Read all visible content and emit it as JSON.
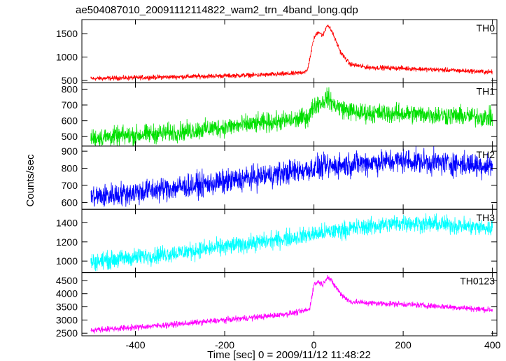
{
  "chart_data": {
    "type": "line",
    "title": "ae504087010_20091112114822_wam2_trn_4band_long.qdp",
    "xlabel": "Time [sec] 0 = 2009/11/12 11:48:22",
    "ylabel": "Counts/sec",
    "xlim": [
      -520,
      410
    ],
    "xticks": [
      -400,
      -200,
      0,
      200,
      400
    ],
    "grid": false,
    "panels": [
      {
        "name": "TH0",
        "color": "#ff0000",
        "ylim": [
          450,
          1800
        ],
        "yticks": [
          500,
          1000,
          1500
        ],
        "x": [
          -500,
          -400,
          -300,
          -200,
          -100,
          -40,
          -15,
          0,
          10,
          20,
          30,
          40,
          60,
          80,
          120,
          200,
          300,
          400
        ],
        "y": [
          540,
          560,
          580,
          600,
          625,
          650,
          700,
          1400,
          1550,
          1450,
          1700,
          1550,
          1100,
          850,
          780,
          760,
          720,
          680
        ],
        "noise": 25
      },
      {
        "name": "TH1",
        "color": "#00e000",
        "ylim": [
          440,
          840
        ],
        "yticks": [
          500,
          600,
          700,
          800
        ],
        "x": [
          -500,
          -400,
          -300,
          -200,
          -100,
          -40,
          -10,
          0,
          20,
          30,
          45,
          70,
          100,
          200,
          300,
          400
        ],
        "y": [
          490,
          510,
          530,
          560,
          590,
          605,
          630,
          700,
          720,
          750,
          700,
          670,
          650,
          645,
          635,
          620
        ],
        "noise": 30
      },
      {
        "name": "TH2",
        "color": "#0000ff",
        "ylim": [
          560,
          930
        ],
        "yticks": [
          600,
          700,
          800,
          900
        ],
        "x": [
          -500,
          -400,
          -300,
          -200,
          -100,
          0,
          100,
          200,
          300,
          400
        ],
        "y": [
          630,
          660,
          690,
          720,
          760,
          800,
          830,
          845,
          830,
          815
        ],
        "noise": 35
      },
      {
        "name": "TH3",
        "color": "#00ffff",
        "ylim": [
          880,
          1540
        ],
        "yticks": [
          1000,
          1200,
          1400
        ],
        "x": [
          -500,
          -400,
          -300,
          -200,
          -100,
          0,
          100,
          200,
          300,
          400
        ],
        "y": [
          990,
          1040,
          1090,
          1150,
          1210,
          1280,
          1350,
          1400,
          1380,
          1340
        ],
        "noise": 45
      },
      {
        "name": "TH0123",
        "color": "#ff00ff",
        "ylim": [
          2400,
          4800
        ],
        "yticks": [
          2500,
          3000,
          3500,
          4000,
          4500
        ],
        "x": [
          -500,
          -400,
          -300,
          -200,
          -100,
          -40,
          -10,
          0,
          10,
          20,
          30,
          40,
          60,
          80,
          120,
          200,
          300,
          400
        ],
        "y": [
          2620,
          2720,
          2850,
          3000,
          3150,
          3280,
          3400,
          4350,
          4450,
          4350,
          4650,
          4450,
          4000,
          3700,
          3650,
          3600,
          3500,
          3380
        ],
        "noise": 55
      }
    ]
  }
}
